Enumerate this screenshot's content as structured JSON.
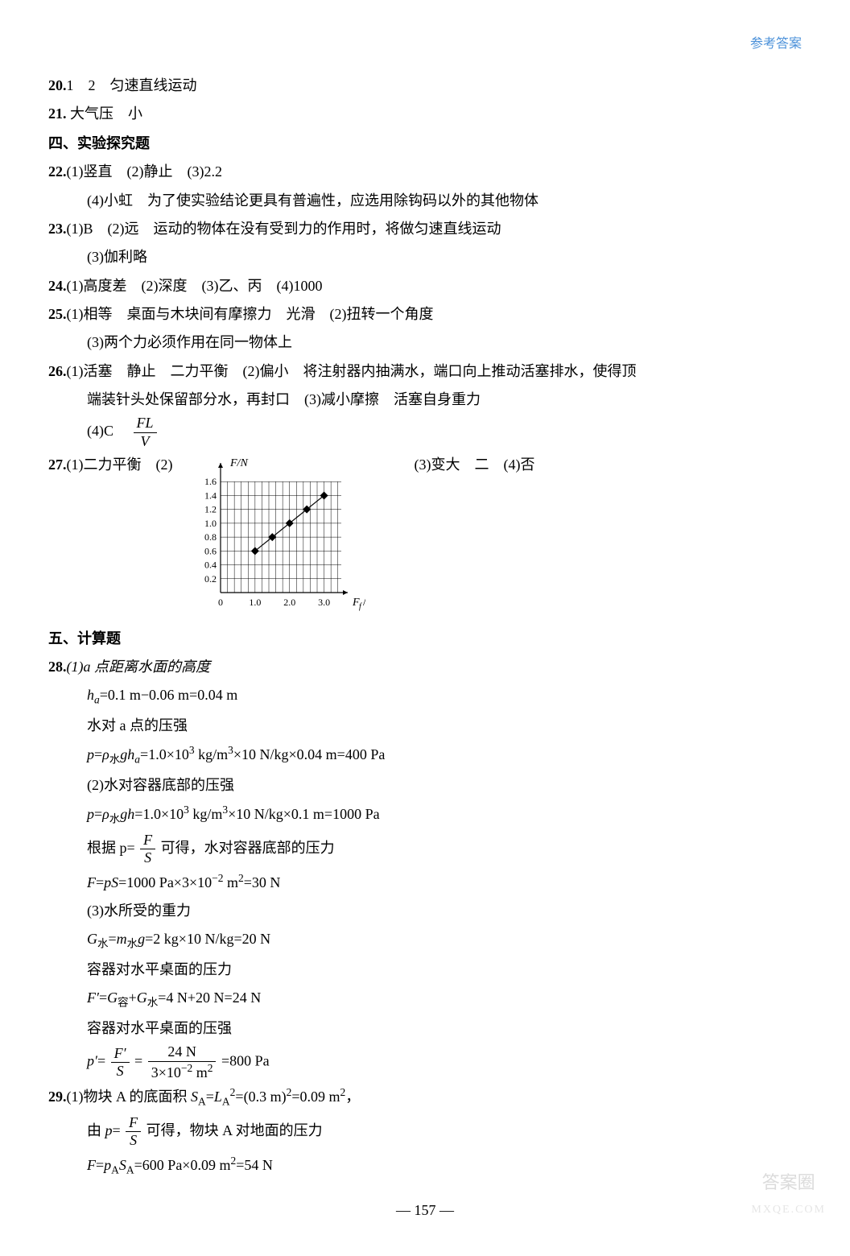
{
  "header": {
    "right": "参考答案"
  },
  "q20": {
    "num": "20.",
    "text": "1　2　匀速直线运动"
  },
  "q21": {
    "num": "21.",
    "text": " 大气压　小"
  },
  "section4": "四、实验探究题",
  "q22": {
    "num": "22.",
    "line1": "(1)竖直　(2)静止　(3)2.2",
    "line2": "(4)小虹　为了使实验结论更具有普遍性，应选用除钩码以外的其他物体"
  },
  "q23": {
    "num": "23.",
    "line1": "(1)B　(2)远　运动的物体在没有受到力的作用时，将做匀速直线运动",
    "line2": "(3)伽利略"
  },
  "q24": {
    "num": "24.",
    "text": "(1)高度差　(2)深度　(3)乙、丙　(4)1000"
  },
  "q25": {
    "num": "25.",
    "line1": "(1)相等　桌面与木块间有摩擦力　光滑　(2)扭转一个角度",
    "line2": "(3)两个力必须作用在同一物体上"
  },
  "q26": {
    "num": "26.",
    "line1": "(1)活塞　静止　二力平衡　(2)偏小　将注射器内抽满水，端口向上推动活塞排水，使得顶",
    "line2": "端装针头处保留部分水，再封口　(3)减小摩擦　活塞自身重力",
    "line3_prefix": "(4)C　",
    "frac_num": "FL",
    "frac_den": "V"
  },
  "q27": {
    "num": "27.",
    "left": "(1)二力平衡　(2)",
    "right": "(3)变大　二　(4)否",
    "chart": {
      "ylabel": "F/N",
      "xlabel": "F/N",
      "yticks": [
        "1.6",
        "1.4",
        "1.2",
        "1.0",
        "0.8",
        "0.6",
        "0.4",
        "0.2"
      ],
      "xticks": [
        "0",
        "1.0",
        "2.0",
        "3.0"
      ],
      "grid_color": "#000000",
      "bg": "#ffffff",
      "points": [
        {
          "x": 1.0,
          "y": 0.6
        },
        {
          "x": 1.5,
          "y": 0.8
        },
        {
          "x": 2.0,
          "y": 1.0
        },
        {
          "x": 2.5,
          "y": 1.2
        },
        {
          "x": 3.0,
          "y": 1.4
        }
      ],
      "line_color": "#000000",
      "line_width": 1.2,
      "marker": "diamond",
      "marker_size": 5
    }
  },
  "section5": "五、计算题",
  "q28": {
    "num": "28.",
    "part1_title": "(1)a 点距离水面的高度",
    "ha": "hₐ=0.1 m−0.06 m=0.04 m",
    "p1_label": "水对 a 点的压强",
    "p1": "p=ρ水 ghₐ=1.0×10³ kg/m³×10 N/kg×0.04 m=400 Pa",
    "part2_title": "(2)水对容器底部的压强",
    "p2": "p=ρ水 gh=1.0×10³ kg/m³×10 N/kg×0.1 m=1000 Pa",
    "p2_deriv_prefix": "根据 p=",
    "p2_deriv_suffix": "可得，水对容器底部的压力",
    "frac1_num": "F",
    "frac1_den": "S",
    "F": "F=pS=1000 Pa×3×10⁻² m²=30 N",
    "part3_title": "(3)水所受的重力",
    "G": "G水=m水 g=2 kg×10 N/kg=20 N",
    "Fprime_label": "容器对水平桌面的压力",
    "Fprime": "F′=G容+G水=4 N+20 N=24 N",
    "pprime_label": "容器对水平桌面的压强",
    "pprime_left": "p′=",
    "pprime_frac1_num": "F′",
    "pprime_frac1_den": "S",
    "pprime_eq": "=",
    "pprime_frac2_num": "24 N",
    "pprime_frac2_den": "3×10⁻² m²",
    "pprime_result": "=800 Pa"
  },
  "q29": {
    "num": "29.",
    "line1": "(1)物块 A 的底面积 Sᴀ=Lᴀ²=(0.3 m)²=0.09 m²，",
    "line2_prefix": "由 p=",
    "frac_num": "F",
    "frac_den": "S",
    "line2_suffix": "可得，物块 A 对地面的压力",
    "line3": "F=pᴀSᴀ=600 Pa×0.09 m²=54 N"
  },
  "pagenum": "— 157 —",
  "watermark": {
    "wm1": "答案圈",
    "wm2": "MXQE.COM"
  }
}
